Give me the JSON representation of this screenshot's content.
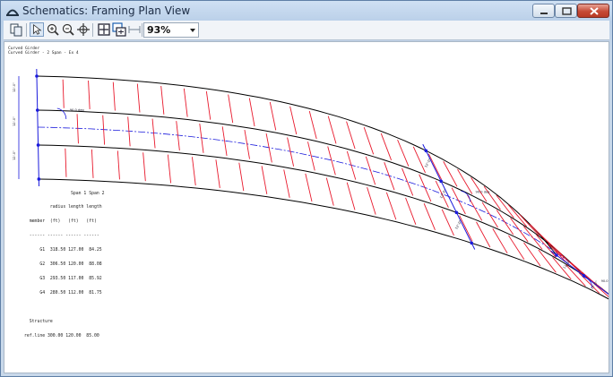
{
  "window": {
    "title": "Schematics: Framing Plan View",
    "icon": "bridge-arch-icon"
  },
  "toolbar": {
    "buttons": [
      "copy-icon",
      "pointer-icon",
      "zoom-in-icon",
      "zoom-out-icon",
      "pan-icon",
      "zoom-extents-icon",
      "zoom-window-icon",
      "measure-icon"
    ],
    "zoom_value": "93%"
  },
  "drawing": {
    "header_line1": "Curved Girder",
    "header_line2": "Curved Girder - 2 Span - Ex 4",
    "angle_label_1": "90.0 deg",
    "angle_label_2": "90.0 deg",
    "angle_label_3": "90.0 deg",
    "girder_spacing_labels": [
      "12'-0\"",
      "12'-0\"",
      "12'-0\""
    ],
    "pier_spacing_labels": [
      "12'-0\"",
      "12'-0\"",
      "12'-0\""
    ],
    "end_spacing_labels": [
      "12'-0\"",
      "12'-0\"",
      "12'-0\""
    ],
    "colors": {
      "girder": "#000000",
      "crossframe": "#e8192c",
      "dimension": "#1a1adc",
      "centerline": "#1a1adc"
    }
  },
  "table": {
    "header1": "                  Span 1 Span 2",
    "header2": "          radius length length",
    "header3": "  member  (ft)   (ft)   (ft)",
    "divider": "  ------ ------ ------ ------",
    "rows": [
      "      G1  318.50 127.00  84.25",
      "      G2  306.50 120.00  88.08",
      "      G3  293.50 117.00  85.92",
      "      G4  280.50 112.00  81.75"
    ],
    "structure_label": "  Structure",
    "ref_line": "ref.line 300.00 120.00  85.00"
  }
}
